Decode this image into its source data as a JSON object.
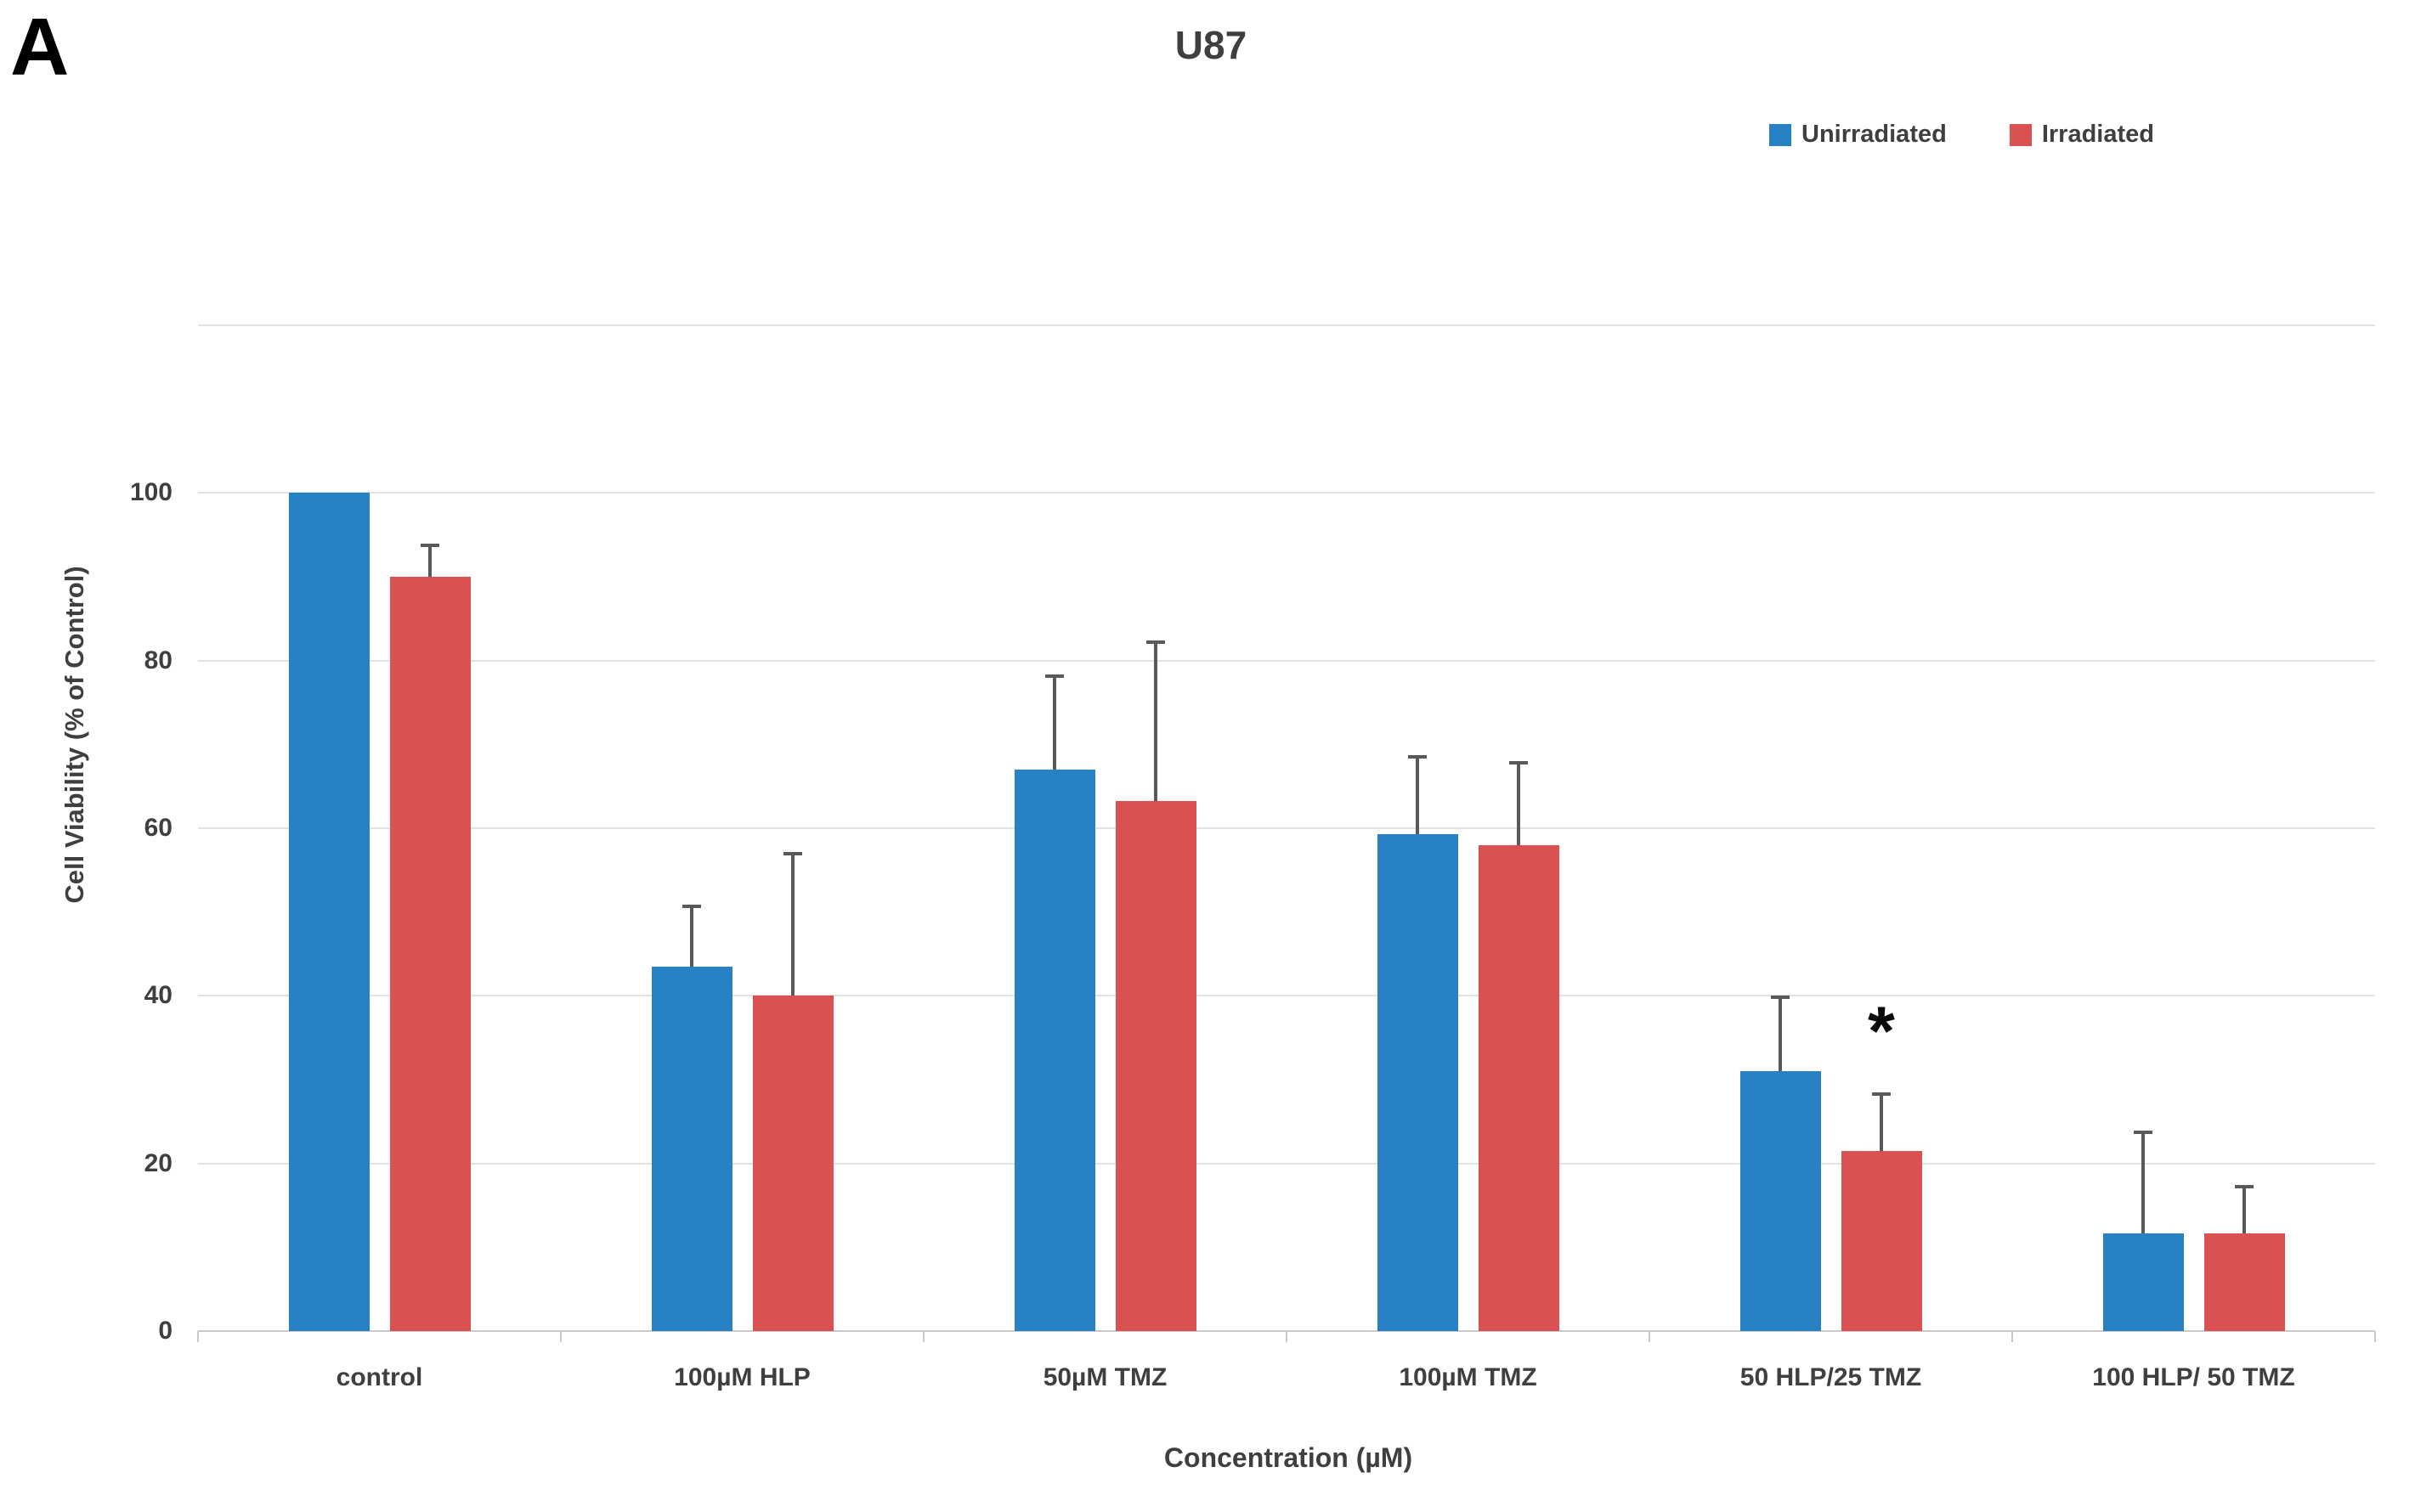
{
  "panel_label": "A",
  "chart_data": {
    "type": "bar",
    "title": "U87",
    "xlabel": "Concentration (µM)",
    "ylabel": "Cell Viability (% of Control)",
    "categories": [
      "control",
      "100µM HLP",
      "50µM TMZ",
      "100µM TMZ",
      "50 HLP/25 TMZ",
      "100 HLP/ 50 TMZ"
    ],
    "series": [
      {
        "name": "Unirradiated",
        "color": "#2781c3",
        "values": [
          100,
          43.5,
          67,
          59.3,
          31,
          11.7
        ],
        "errors_plus": [
          0,
          7.4,
          11.3,
          9.4,
          9,
          12.2
        ]
      },
      {
        "name": "Irradiated",
        "color": "#d95151",
        "values": [
          90,
          40,
          63.2,
          58,
          21.5,
          11.7
        ],
        "errors_plus": [
          4,
          17.2,
          19.2,
          10,
          7,
          5.7
        ]
      }
    ],
    "ylim": [
      0,
      120
    ],
    "ytick_labels": [
      0,
      20,
      40,
      60,
      80,
      100
    ],
    "gridlines": [
      0,
      20,
      40,
      60,
      80,
      100,
      120
    ],
    "grid": true,
    "legend_position": "top-right",
    "error_bar_color": "#58595b",
    "annotations": [
      {
        "text": "*",
        "series": "Irradiated",
        "category": "50 HLP/25 TMZ"
      }
    ]
  }
}
